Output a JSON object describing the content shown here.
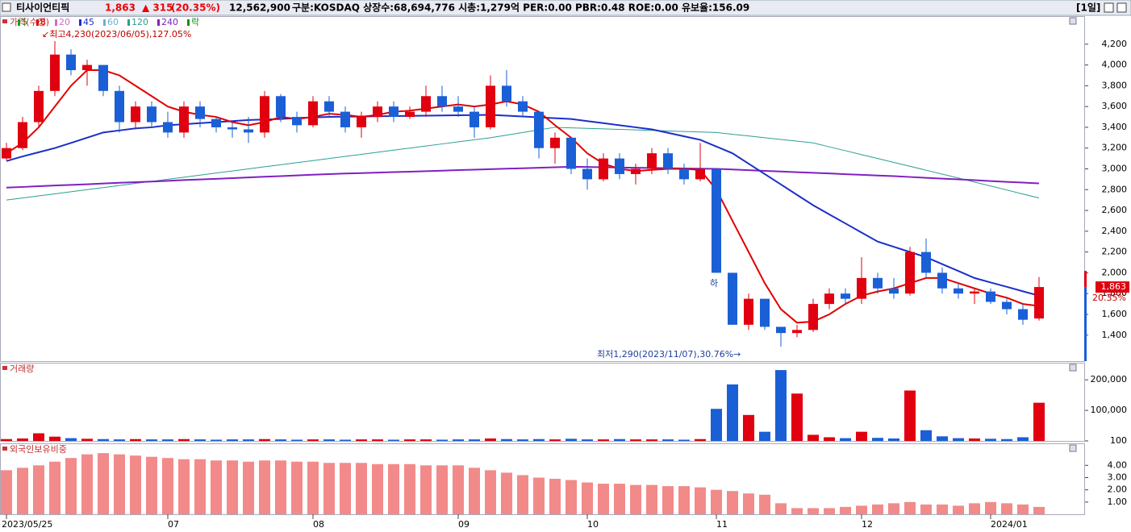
{
  "header": {
    "name": "티사이언티픽",
    "price": "1,863",
    "change": "▲ 315",
    "pct": "(20.35%)",
    "volume": "12,562,900",
    "info": "구분:KOSDAQ 상장수:68,694,776 시총:1,279억 PER:0.00 PBR:0.48 ROE:0.00 유보율:156.09",
    "period": "[1일]"
  },
  "chart_data": [
    {
      "type": "candlestick",
      "title": "가격(수정)",
      "legend": [
        {
          "name": "5",
          "color": "#1aa01a"
        },
        {
          "name": "8",
          "color": "#e00000"
        },
        {
          "name": "20",
          "color": "#d070c0"
        },
        {
          "name": "45",
          "color": "#1a2fc8"
        },
        {
          "name": "60",
          "color": "#6ab0d8"
        },
        {
          "name": "120",
          "color": "#2aa090"
        },
        {
          "name": "240",
          "color": "#8020c0"
        },
        {
          "name": "락",
          "color": "#1a8a1a"
        }
      ],
      "categories": [
        "2023/05/25",
        null,
        null,
        null,
        null,
        null,
        null,
        null,
        null,
        null,
        "07",
        null,
        null,
        null,
        null,
        null,
        null,
        null,
        null,
        "08",
        null,
        null,
        null,
        null,
        null,
        null,
        null,
        null,
        "09",
        null,
        null,
        null,
        null,
        null,
        null,
        null,
        "10",
        null,
        null,
        null,
        null,
        null,
        null,
        null,
        "11",
        null,
        null,
        null,
        null,
        null,
        null,
        null,
        null,
        "12",
        null,
        null,
        null,
        null,
        null,
        null,
        null,
        "2024/01",
        null,
        null,
        null
      ],
      "open": [
        3100,
        3200,
        3450,
        3750,
        4100,
        3950,
        4000,
        3750,
        3450,
        3600,
        3450,
        3350,
        3600,
        3480,
        3400,
        3380,
        3350,
        3700,
        3500,
        3420,
        3650,
        3550,
        3400,
        3500,
        3600,
        3500,
        3550,
        3700,
        3600,
        3550,
        3400,
        3800,
        3650,
        3550,
        3200,
        3300,
        3000,
        2900,
        3100,
        2950,
        3000,
        3150,
        3000,
        2900,
        3000,
        2000,
        1500,
        1750,
        1480,
        1420,
        1450,
        1700,
        1800,
        1750,
        1950,
        1850,
        1800,
        2200,
        2000,
        1850,
        1800,
        1820,
        1720,
        1650,
        1560
      ],
      "high": [
        3250,
        3500,
        3800,
        4230,
        4150,
        4050,
        4000,
        3800,
        3650,
        3650,
        3550,
        3650,
        3650,
        3500,
        3450,
        3500,
        3750,
        3720,
        3550,
        3700,
        3700,
        3600,
        3550,
        3650,
        3650,
        3600,
        3800,
        3800,
        3700,
        3600,
        3900,
        3950,
        3700,
        3550,
        3350,
        3300,
        3100,
        3150,
        3150,
        3050,
        3200,
        3200,
        3050,
        3250,
        3000,
        2000,
        1800,
        1750,
        1480,
        1500,
        1750,
        1850,
        1850,
        2150,
        2000,
        1950,
        2250,
        2330,
        2050,
        1900,
        1850,
        1850,
        1750,
        1700,
        1960
      ],
      "low": [
        3080,
        3180,
        3400,
        3700,
        3900,
        3800,
        3700,
        3350,
        3380,
        3400,
        3300,
        3300,
        3400,
        3350,
        3300,
        3250,
        3300,
        3450,
        3350,
        3400,
        3500,
        3350,
        3300,
        3450,
        3450,
        3480,
        3500,
        3550,
        3500,
        3300,
        3380,
        3600,
        3500,
        3100,
        3050,
        2950,
        2800,
        2880,
        2900,
        2850,
        2950,
        2950,
        2850,
        2880,
        2000,
        1500,
        1450,
        1450,
        1290,
        1380,
        1430,
        1650,
        1700,
        1700,
        1800,
        1750,
        1780,
        1950,
        1800,
        1750,
        1700,
        1700,
        1600,
        1500,
        1540
      ],
      "close": [
        3200,
        3450,
        3750,
        4100,
        3950,
        4000,
        3750,
        3450,
        3600,
        3450,
        3350,
        3600,
        3480,
        3400,
        3380,
        3350,
        3700,
        3500,
        3420,
        3650,
        3550,
        3400,
        3500,
        3600,
        3500,
        3550,
        3700,
        3600,
        3550,
        3400,
        3800,
        3650,
        3550,
        3200,
        3300,
        3000,
        2900,
        3100,
        2950,
        3000,
        3150,
        3000,
        2900,
        3000,
        2000,
        1500,
        1750,
        1480,
        1420,
        1450,
        1700,
        1800,
        1750,
        1950,
        1850,
        1800,
        2200,
        2000,
        1850,
        1800,
        1820,
        1720,
        1650,
        1548,
        1863
      ],
      "series": [
        {
          "color": "#2aa090",
          "width": 1,
          "values": [
            2700,
            2720,
            2740,
            2760,
            2780,
            2800,
            2820,
            2840,
            2860,
            2880,
            2900,
            2920,
            2940,
            2960,
            2980,
            3000,
            3020,
            3040,
            3060,
            3080,
            3100,
            3120,
            3140,
            3160,
            3180,
            3200,
            3220,
            3240,
            3260,
            3280,
            3300,
            3325,
            3350,
            3375,
            3400,
            3395,
            3390,
            3385,
            3380,
            3375,
            3370,
            3365,
            3360,
            3355,
            3350,
            3333,
            3317,
            3300,
            3283,
            3267,
            3250,
            3212,
            3175,
            3137,
            3100,
            3062,
            3025,
            2987,
            2950,
            2912,
            2873,
            2835,
            2797,
            2758,
            2720
          ]
        },
        {
          "color": "#8020c0",
          "width": 2,
          "values": [
            2820,
            2826,
            2833,
            2840,
            2846,
            2852,
            2859,
            2866,
            2872,
            2878,
            2885,
            2892,
            2898,
            2904,
            2911,
            2918,
            2924,
            2930,
            2937,
            2944,
            2950,
            2955,
            2959,
            2964,
            2969,
            2973,
            2978,
            2983,
            2988,
            2992,
            2997,
            3002,
            3006,
            3011,
            3016,
            3020,
            3018,
            3016,
            3013,
            3011,
            3009,
            3007,
            3004,
            3002,
            3000,
            2994,
            2987,
            2981,
            2975,
            2968,
            2962,
            2956,
            2949,
            2943,
            2936,
            2930,
            2922,
            2914,
            2906,
            2899,
            2891,
            2883,
            2875,
            2868,
            2860
          ]
        },
        {
          "color": "#1a2fc8",
          "width": 2,
          "values": [
            3075,
            3120,
            3160,
            3200,
            3250,
            3300,
            3350,
            3370,
            3390,
            3400,
            3420,
            3430,
            3440,
            3450,
            3460,
            3470,
            3475,
            3480,
            3490,
            3495,
            3500,
            3502,
            3504,
            3506,
            3508,
            3510,
            3512,
            3514,
            3516,
            3518,
            3520,
            3512,
            3504,
            3496,
            3488,
            3480,
            3460,
            3440,
            3420,
            3400,
            3380,
            3347,
            3313,
            3280,
            3215,
            3150,
            3050,
            2950,
            2850,
            2750,
            2650,
            2562,
            2475,
            2387,
            2300,
            2250,
            2200,
            2150,
            2083,
            2017,
            1950,
            1907,
            1865,
            1822,
            1780
          ]
        },
        {
          "color": "#e00000",
          "width": 2,
          "values": [
            3150,
            3250,
            3400,
            3600,
            3800,
            3950,
            3950,
            3900,
            3800,
            3700,
            3600,
            3550,
            3520,
            3500,
            3450,
            3420,
            3450,
            3500,
            3480,
            3500,
            3530,
            3520,
            3500,
            3520,
            3550,
            3560,
            3580,
            3600,
            3620,
            3600,
            3620,
            3650,
            3620,
            3550,
            3420,
            3300,
            3150,
            3050,
            3000,
            2980,
            2990,
            3000,
            3000,
            2990,
            2800,
            2500,
            2200,
            1900,
            1650,
            1520,
            1530,
            1600,
            1700,
            1780,
            1820,
            1850,
            1900,
            1950,
            1950,
            1900,
            1850,
            1800,
            1760,
            1700,
            1680
          ]
        }
      ],
      "annotations": {
        "high": "↙최고4,230(2023/06/05),127.05%",
        "low": "최저1,290(2023/11/07),30.76%→",
        "limit": "하"
      },
      "last_label": "1,863",
      "last_pct": "20.35%",
      "ylim": [
        1150,
        4470
      ],
      "yticks": [
        {
          "value": 1400,
          "label": "1,400"
        },
        {
          "value": 1600,
          "label": "1,600"
        },
        {
          "value": 1800,
          "label": "1,800"
        },
        {
          "value": 2000,
          "label": "2,000"
        },
        {
          "value": 2200,
          "label": "2,200"
        },
        {
          "value": 2400,
          "label": "2,400"
        },
        {
          "value": 2600,
          "label": "2,600"
        },
        {
          "value": 2800,
          "label": "2,800"
        },
        {
          "value": 3000,
          "label": "3,000"
        },
        {
          "value": 3200,
          "label": "3,200"
        },
        {
          "value": 3400,
          "label": "3,400"
        },
        {
          "value": 3600,
          "label": "3,600"
        },
        {
          "value": 3800,
          "label": "3,800"
        },
        {
          "value": 4000,
          "label": "4,000"
        },
        {
          "value": 4200,
          "label": "4,200"
        }
      ],
      "up_color": "#e0000f",
      "down_color": "#1a5fd6"
    },
    {
      "type": "bar",
      "title": "거래량",
      "color_by_candle": true,
      "values": [
        6000,
        8000,
        25000,
        14000,
        9000,
        7000,
        6000,
        5000,
        6000,
        5000,
        5000,
        6000,
        5000,
        4000,
        5000,
        5000,
        6000,
        5000,
        4000,
        5000,
        5000,
        4000,
        5000,
        5000,
        4000,
        5000,
        5000,
        4000,
        5000,
        5000,
        8000,
        6000,
        5000,
        6000,
        5000,
        7000,
        5000,
        5000,
        6000,
        5000,
        5000,
        5000,
        4000,
        6000,
        105000,
        185000,
        85000,
        30000,
        232000,
        155000,
        20000,
        12000,
        9000,
        30000,
        10000,
        8000,
        165000,
        35000,
        15000,
        9000,
        8000,
        7000,
        6000,
        12000,
        125000
      ],
      "ylim": [
        0,
        256000
      ],
      "yticks": [
        100,
        {
          "value": 100000,
          "label": "100,000"
        },
        {
          "value": 200000,
          "label": "200,000"
        }
      ]
    },
    {
      "type": "bar",
      "title": "외국인보유비중",
      "color": "#f28a8a",
      "values": [
        3.6,
        3.8,
        4.0,
        4.3,
        4.6,
        4.9,
        5.0,
        4.9,
        4.8,
        4.7,
        4.6,
        4.5,
        4.5,
        4.4,
        4.4,
        4.3,
        4.4,
        4.4,
        4.3,
        4.3,
        4.2,
        4.2,
        4.2,
        4.1,
        4.1,
        4.1,
        4.0,
        4.0,
        4.0,
        3.8,
        3.6,
        3.4,
        3.2,
        3.0,
        2.9,
        2.8,
        2.6,
        2.5,
        2.5,
        2.4,
        2.4,
        2.3,
        2.3,
        2.2,
        2.0,
        1.9,
        1.7,
        1.6,
        0.9,
        0.5,
        0.5,
        0.5,
        0.6,
        0.7,
        0.8,
        0.9,
        1.0,
        0.8,
        0.8,
        0.7,
        0.9,
        1.0,
        0.9,
        0.8,
        0.6
      ],
      "ylim": [
        0,
        5.8
      ],
      "yticks": [
        {
          "value": 1,
          "label": "1.00"
        },
        {
          "value": 2,
          "label": "2.00"
        },
        {
          "value": 3,
          "label": "3.00"
        },
        {
          "value": 4,
          "label": "4.00"
        }
      ]
    }
  ]
}
